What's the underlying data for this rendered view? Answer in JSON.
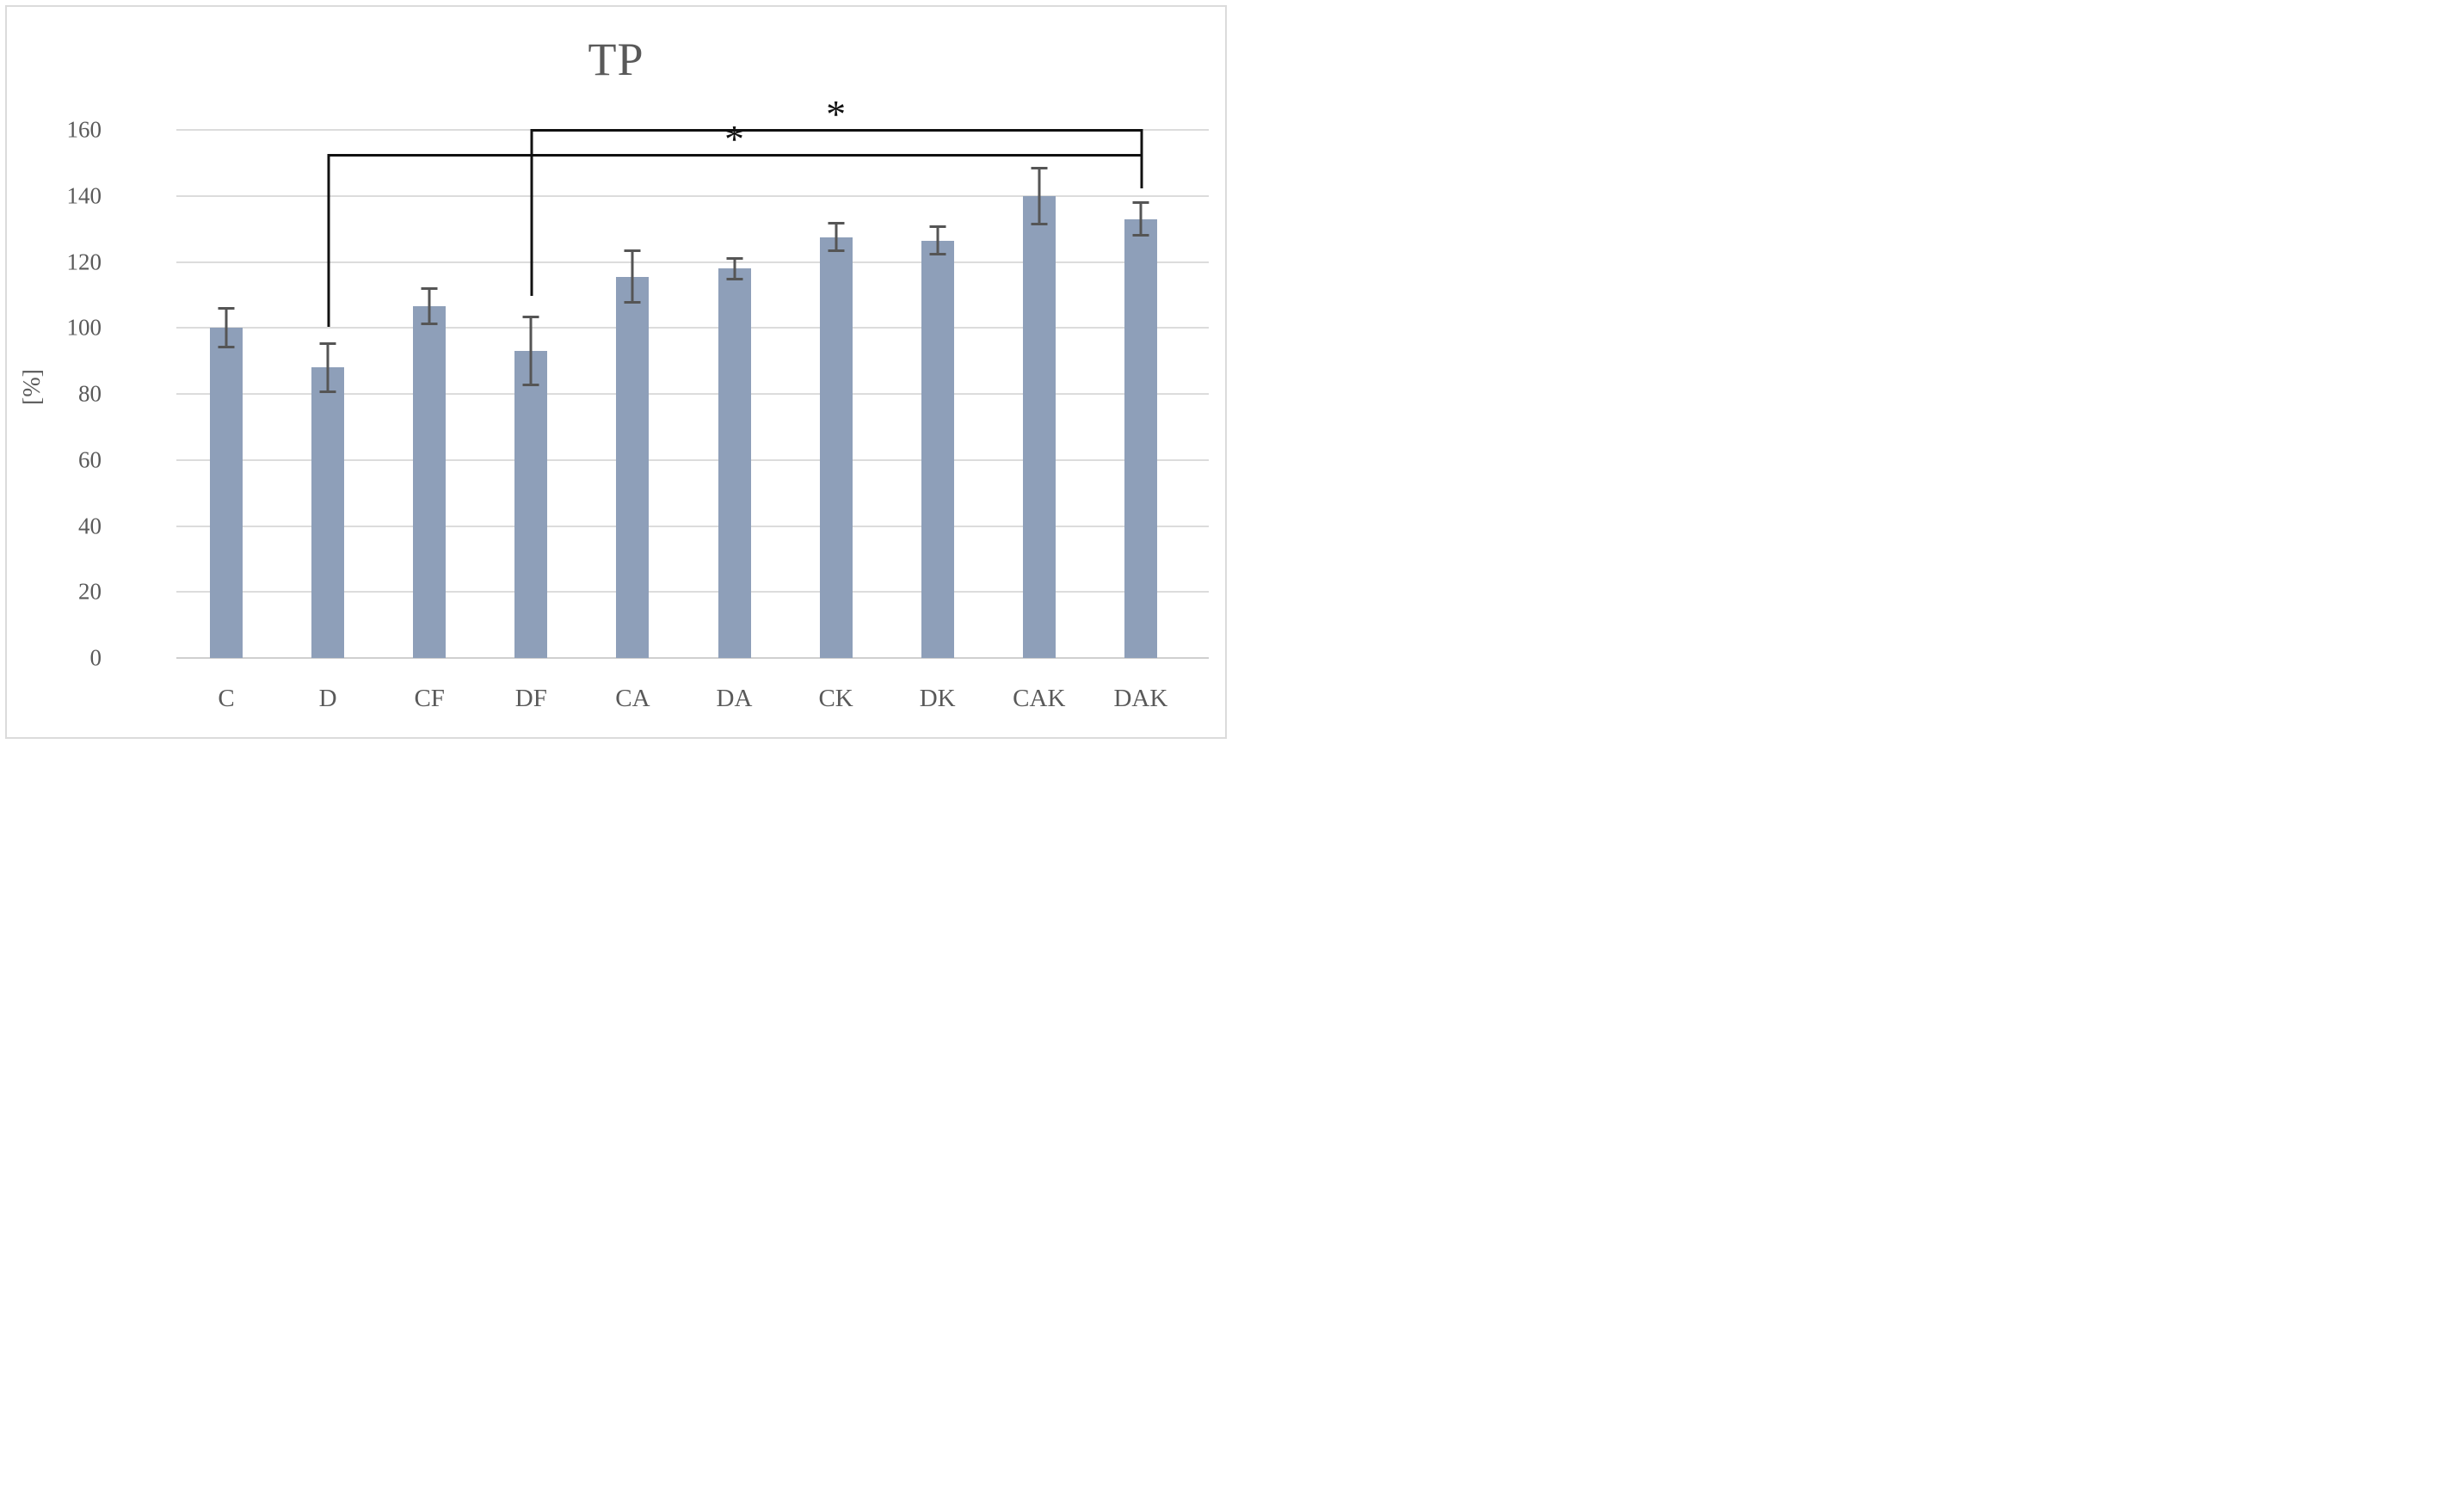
{
  "chart": {
    "title": "TP",
    "y_axis_label": "[%]"
  },
  "chart_data": {
    "type": "bar",
    "title": "TP",
    "xlabel": "",
    "ylabel": "[%]",
    "categories": [
      "C",
      "D",
      "CF",
      "DF",
      "CA",
      "DA",
      "CK",
      "DK",
      "CAK",
      "DAK"
    ],
    "values": [
      100,
      88,
      106.5,
      93,
      115.5,
      118,
      127.5,
      126.5,
      140,
      133
    ],
    "error_bars": [
      6,
      7.5,
      5.5,
      10.5,
      8,
      3.3,
      4.3,
      4.4,
      8.6,
      5
    ],
    "ylim": [
      0,
      160
    ],
    "yticks": [
      0,
      20,
      40,
      60,
      80,
      100,
      120,
      140,
      160
    ],
    "grid": "horizontal",
    "legend": "none",
    "bar_color": "#8e9fb9",
    "error_bar_color": "#555555",
    "gridline_color": "#dcdcdc",
    "text_color": "#595959",
    "bracket_color": "#111111",
    "significance": [
      {
        "groups": [
          "D",
          "DAK"
        ],
        "label": "*",
        "height": 152.7,
        "drop_left_to": 100.3,
        "drop_right_to": 142.4
      },
      {
        "groups": [
          "DF",
          "DAK"
        ],
        "label": "*",
        "height": 160.3,
        "drop_left_to": 109.7,
        "drop_right_to": 142.4
      }
    ]
  }
}
